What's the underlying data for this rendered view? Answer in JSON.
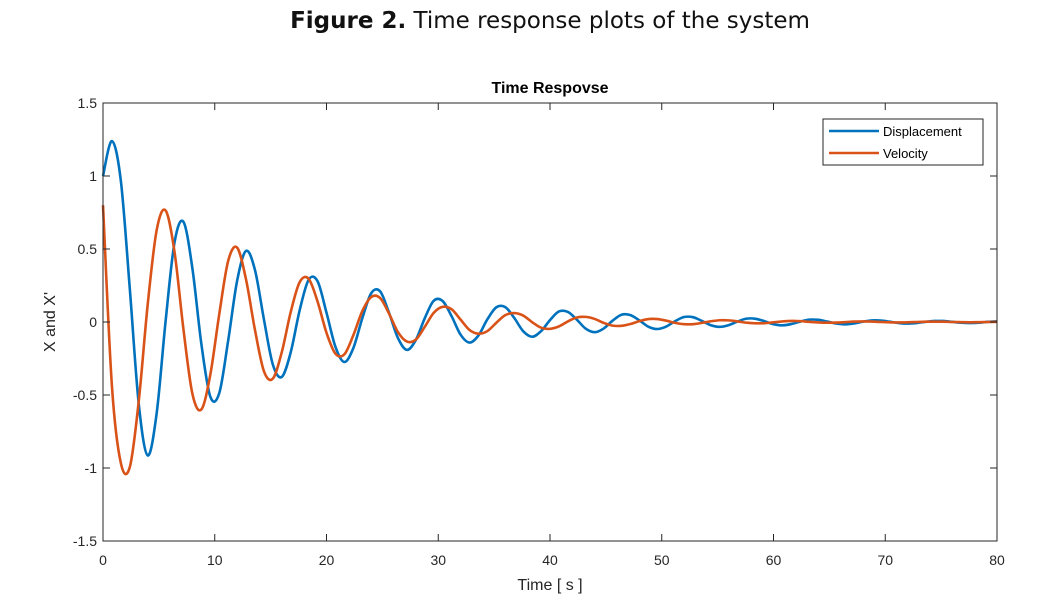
{
  "figure_caption": {
    "label": "Figure 2.",
    "text": "Time response plots of the system"
  },
  "chart_data": {
    "type": "line",
    "title": "Time Respovse",
    "xlabel": "Time [ s ]",
    "ylabel": "X and X'",
    "xlim": [
      0,
      80
    ],
    "ylim": [
      -1.5,
      1.5
    ],
    "xticks": [
      0,
      10,
      20,
      30,
      40,
      50,
      60,
      70,
      80
    ],
    "xtick_labels": [
      "0",
      "10",
      "20",
      "30",
      "40",
      "50",
      "60",
      "70",
      "80"
    ],
    "yticks": [
      -1.5,
      -1,
      -0.5,
      0,
      0.5,
      1,
      1.5
    ],
    "ytick_labels": [
      "-1.5",
      "-1",
      "-0.5",
      "0",
      "0.5",
      "1",
      "1.5"
    ],
    "grid": false,
    "legend_position": "top-right",
    "series": [
      {
        "name": "Displacement",
        "color": "#0072BD",
        "x": [
          0,
          0.8,
          1.6,
          2.4,
          3.2,
          4.0,
          4.8,
          5.6,
          6.4,
          7.2,
          8.0,
          8.8,
          9.6,
          10.4,
          11.2,
          12.0,
          12.8,
          13.6,
          14.4,
          15.2,
          16.0,
          16.8,
          17.6,
          18.4,
          19.2,
          20.0,
          20.8,
          21.6,
          22.4,
          23.2,
          24.0,
          24.8,
          25.6,
          26.4,
          27.2,
          28.0,
          28.8,
          29.6,
          30.4,
          31.2,
          32.0,
          32.8,
          33.6,
          34.4,
          35.2,
          36.0,
          36.8,
          37.6,
          38.4,
          39.2,
          40.0,
          40.8,
          41.6,
          42.4,
          43.2,
          44.0,
          44.8,
          45.6,
          46.4,
          47.2,
          48.0,
          48.8,
          49.6,
          50.4,
          51.2,
          52.0,
          52.8,
          53.6,
          54.4,
          55.2,
          56.0,
          56.8,
          57.6,
          58.4,
          59.2,
          60.0,
          60.8,
          61.6,
          62.4,
          63.2,
          64.0,
          64.8,
          65.6,
          66.4,
          67.2,
          68.0,
          68.8,
          69.6,
          70.4,
          71.2,
          72.0,
          72.8,
          73.6,
          74.4,
          75.2,
          76.0,
          76.8,
          77.6,
          78.4,
          79.2,
          80.0
        ],
        "y": [
          1.0,
          1.239,
          0.965,
          0.226,
          -0.562,
          -0.914,
          -0.626,
          0.004,
          0.545,
          0.686,
          0.367,
          -0.149,
          -0.511,
          -0.488,
          -0.128,
          0.282,
          0.487,
          0.356,
          0.018,
          -0.292,
          -0.376,
          -0.207,
          0.081,
          0.289,
          0.279,
          0.064,
          -0.17,
          -0.274,
          -0.179,
          0.025,
          0.197,
          0.21,
          0.062,
          -0.111,
          -0.191,
          -0.122,
          0.027,
          0.146,
          0.143,
          0.039,
          -0.087,
          -0.141,
          -0.092,
          0.019,
          0.101,
          0.102,
          0.028,
          -0.063,
          -0.101,
          -0.063,
          0.013,
          0.072,
          0.069,
          0.016,
          -0.046,
          -0.07,
          -0.045,
          0.009,
          0.05,
          0.047,
          0.011,
          -0.032,
          -0.048,
          -0.031,
          0.006,
          0.034,
          0.033,
          0.007,
          -0.022,
          -0.033,
          -0.021,
          0.004,
          0.023,
          0.022,
          0.005,
          -0.015,
          -0.023,
          -0.014,
          0.003,
          0.016,
          0.015,
          0.003,
          -0.01,
          -0.016,
          -0.01,
          0.002,
          0.011,
          0.01,
          0.002,
          -0.007,
          -0.011,
          -0.007,
          0.001,
          0.007,
          0.007,
          0.001,
          -0.005,
          -0.007,
          -0.005,
          0.001,
          0.005
        ]
      },
      {
        "name": "Velocity",
        "color": "#D95319",
        "x": [
          0,
          0.8,
          1.6,
          2.4,
          3.2,
          4.0,
          4.8,
          5.6,
          6.4,
          7.2,
          8.0,
          8.8,
          9.6,
          10.4,
          11.2,
          12.0,
          12.8,
          13.6,
          14.4,
          15.2,
          16.0,
          16.8,
          17.6,
          18.4,
          19.2,
          20.0,
          20.8,
          21.6,
          22.4,
          23.2,
          24.0,
          24.8,
          25.6,
          26.4,
          27.2,
          28.0,
          28.8,
          29.6,
          30.4,
          31.2,
          32.0,
          32.8,
          33.6,
          34.4,
          35.2,
          36.0,
          36.8,
          37.6,
          38.4,
          39.2,
          40.0,
          40.8,
          41.6,
          42.4,
          43.2,
          44.0,
          44.8,
          45.6,
          46.4,
          47.2,
          48.0,
          48.8,
          49.6,
          50.4,
          51.2,
          52.0,
          52.8,
          53.6,
          54.4,
          55.2,
          56.0,
          56.8,
          57.6,
          58.4,
          59.2,
          60.0,
          60.8,
          61.6,
          62.4,
          63.2,
          64.0,
          64.8,
          65.6,
          66.4,
          67.2,
          68.0,
          68.8,
          69.6,
          70.4,
          71.2,
          72.0,
          72.8,
          73.6,
          74.4,
          75.2,
          76.0,
          76.8,
          77.6,
          78.4,
          79.2,
          80.0
        ],
        "y": [
          0.8,
          -0.44,
          -0.967,
          -0.993,
          -0.541,
          0.12,
          0.628,
          0.764,
          0.48,
          -0.051,
          -0.492,
          -0.599,
          -0.362,
          0.052,
          0.418,
          0.51,
          0.291,
          -0.055,
          -0.337,
          -0.388,
          -0.206,
          0.069,
          0.273,
          0.296,
          0.14,
          -0.074,
          -0.217,
          -0.221,
          -0.091,
          0.074,
          0.171,
          0.164,
          0.057,
          -0.07,
          -0.134,
          -0.12,
          -0.032,
          0.063,
          0.104,
          0.087,
          0.016,
          -0.055,
          -0.08,
          -0.062,
          -0.005,
          0.047,
          0.061,
          0.044,
          -0.001,
          -0.039,
          -0.047,
          -0.03,
          0.004,
          0.031,
          0.035,
          0.021,
          -0.006,
          -0.025,
          -0.026,
          -0.014,
          0.006,
          0.02,
          0.02,
          0.009,
          -0.006,
          -0.015,
          -0.015,
          -0.006,
          0.005,
          0.012,
          0.011,
          0.004,
          -0.005,
          -0.009,
          -0.008,
          -0.002,
          0.004,
          0.007,
          0.006,
          0.001,
          -0.003,
          -0.005,
          -0.004,
          -0.001,
          0.003,
          0.004,
          0.003,
          0.0,
          -0.002,
          -0.003,
          -0.002,
          0.0,
          0.002,
          0.002,
          0.002,
          0.0,
          -0.001,
          -0.002,
          -0.001,
          0.0,
          0.001
        ]
      }
    ]
  }
}
